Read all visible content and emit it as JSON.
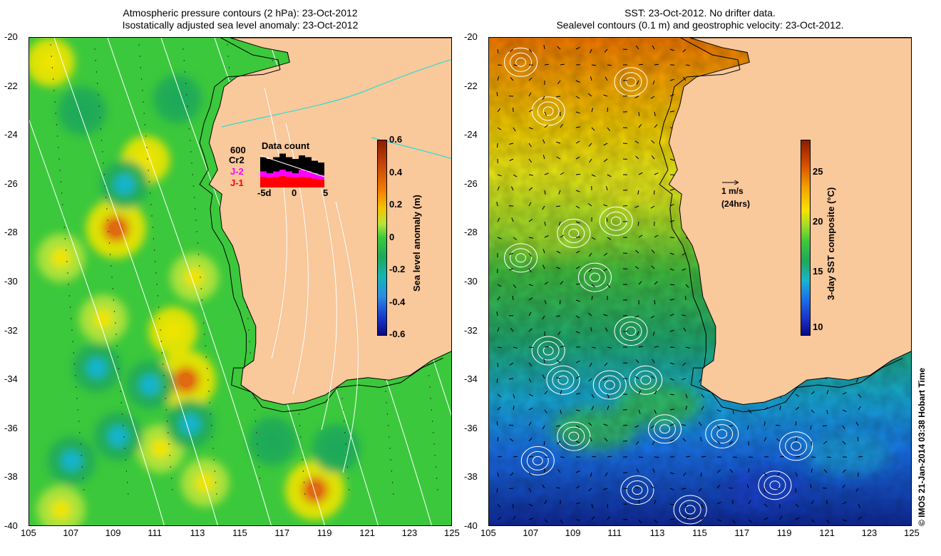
{
  "left_panel": {
    "title_line1": "Atmospheric pressure contours (2 hPa): 23-Oct-2012",
    "title_line2": "Isostatically adjusted sea level anomaly: 23-Oct-2012",
    "colorbar": {
      "label": "Sea level anomaly (m)",
      "ticks": [
        "0.6",
        "0.4",
        "0.2",
        "0",
        "-0.2",
        "-0.4",
        "-0.6"
      ]
    },
    "data_count": {
      "title": "Data count",
      "max_label": "600",
      "series": [
        "Cr2",
        "J-2",
        "J-1"
      ],
      "series_colors": [
        "#000000",
        "#ff00ff",
        "#ff0000"
      ],
      "xlabels": [
        "-5d",
        "0",
        "5"
      ]
    }
  },
  "right_panel": {
    "title_line1": "SST: 23-Oct-2012. No drifter data.",
    "title_line2": "Sealevel contours (0.1 m) and geostrophic velocity: 23-Oct-2012.",
    "colorbar": {
      "label": "3-day SST composite (°C)",
      "ticks": [
        "25",
        "20",
        "15",
        "10"
      ]
    },
    "velocity_legend": {
      "speed": "1 m/s",
      "duration": "(24hrs)"
    }
  },
  "axes": {
    "y_ticks": [
      "-20",
      "-22",
      "-24",
      "-26",
      "-28",
      "-30",
      "-32",
      "-34",
      "-36",
      "-38",
      "-40"
    ],
    "x_ticks": [
      "105",
      "107",
      "109",
      "111",
      "113",
      "115",
      "117",
      "119",
      "121",
      "123",
      "125"
    ]
  },
  "credit": "© IMOS 21-Jan-2014 03:38 Hobart Time",
  "colors": {
    "land": "#f9c89b",
    "ocean_mid": "#3cc83c",
    "coast": "#000000",
    "contour": "#ffffff"
  },
  "map_data": {
    "extent": {
      "lon_min": 105,
      "lon_max": 125,
      "lat_min": -40,
      "lat_max": -20
    },
    "sla_highs": [
      {
        "lon": 109.1,
        "lat": -27.8,
        "value": 0.45
      },
      {
        "lon": 112.4,
        "lat": -34.0,
        "value": 0.45
      },
      {
        "lon": 118.5,
        "lat": -38.5,
        "value": 0.45
      },
      {
        "lon": 106.0,
        "lat": -21.0,
        "value": 0.25
      },
      {
        "lon": 110.5,
        "lat": -25.0,
        "value": 0.25
      },
      {
        "lon": 108.5,
        "lat": -31.5,
        "value": 0.2
      },
      {
        "lon": 111.8,
        "lat": -32.0,
        "value": 0.25
      },
      {
        "lon": 112.8,
        "lat": -29.8,
        "value": 0.2
      },
      {
        "lon": 113.3,
        "lat": -38.2,
        "value": 0.2
      },
      {
        "lon": 106.5,
        "lat": -29.0,
        "value": 0.2
      },
      {
        "lon": 111.2,
        "lat": -36.8,
        "value": 0.2
      },
      {
        "lon": 106.5,
        "lat": -39.3,
        "value": 0.2
      }
    ],
    "sla_lows": [
      {
        "lon": 109.5,
        "lat": -26.0,
        "value": -0.15
      },
      {
        "lon": 108.2,
        "lat": -33.5,
        "value": -0.2
      },
      {
        "lon": 110.7,
        "lat": -34.2,
        "value": -0.2
      },
      {
        "lon": 107.0,
        "lat": -37.3,
        "value": -0.2
      },
      {
        "lon": 109.2,
        "lat": -36.3,
        "value": -0.15
      },
      {
        "lon": 112.6,
        "lat": -35.8,
        "value": -0.15
      },
      {
        "lon": 112.0,
        "lat": -22.5,
        "value": -0.1
      },
      {
        "lon": 107.5,
        "lat": -23.0,
        "value": -0.1
      },
      {
        "lon": 116.5,
        "lat": -36.5,
        "value": -0.1
      },
      {
        "lon": 119.5,
        "lat": -36.8,
        "value": -0.1
      }
    ],
    "coastline": [
      [
        114.5,
        -20.0
      ],
      [
        116.0,
        -20.4
      ],
      [
        117.2,
        -20.6
      ],
      [
        117.3,
        -21.0
      ],
      [
        116.5,
        -21.2
      ],
      [
        114.8,
        -21.6
      ],
      [
        114.2,
        -22.0
      ],
      [
        114.0,
        -22.8
      ],
      [
        113.7,
        -23.5
      ],
      [
        113.5,
        -24.3
      ],
      [
        113.7,
        -24.8
      ],
      [
        113.9,
        -25.4
      ],
      [
        113.5,
        -26.0
      ],
      [
        114.1,
        -26.4
      ],
      [
        114.0,
        -27.0
      ],
      [
        114.1,
        -27.8
      ],
      [
        114.6,
        -28.5
      ],
      [
        114.9,
        -29.3
      ],
      [
        115.0,
        -30.0
      ],
      [
        115.1,
        -30.6
      ],
      [
        115.4,
        -31.2
      ],
      [
        115.7,
        -31.8
      ],
      [
        115.7,
        -32.5
      ],
      [
        115.6,
        -33.2
      ],
      [
        115.1,
        -33.5
      ],
      [
        115.0,
        -34.2
      ],
      [
        115.5,
        -34.5
      ],
      [
        116.0,
        -34.8
      ],
      [
        117.0,
        -35.0
      ],
      [
        118.0,
        -34.9
      ],
      [
        119.0,
        -34.6
      ],
      [
        120.0,
        -34.0
      ],
      [
        121.0,
        -33.9
      ],
      [
        122.0,
        -34.0
      ],
      [
        123.0,
        -33.8
      ],
      [
        124.0,
        -33.2
      ],
      [
        125.0,
        -32.8
      ]
    ]
  }
}
